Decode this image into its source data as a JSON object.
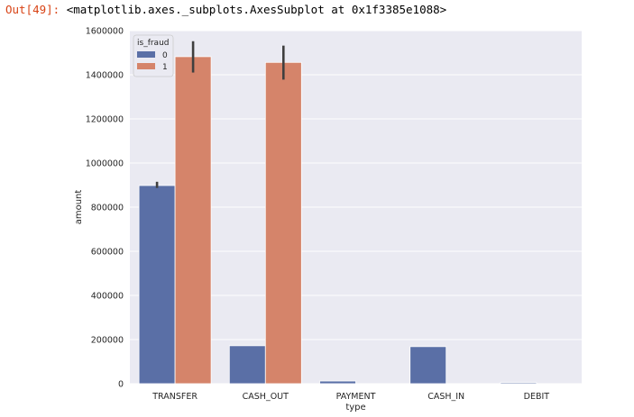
{
  "output": {
    "prompt": "Out[49]:",
    "text": "<matplotlib.axes._subplots.AxesSubplot at 0x1f3385e1088>"
  },
  "chart_data": {
    "type": "bar",
    "xlabel": "type",
    "ylabel": "amount",
    "ylim": [
      0,
      1600000
    ],
    "yticks": [
      0,
      200000,
      400000,
      600000,
      800000,
      1000000,
      1200000,
      1400000,
      1600000
    ],
    "categories": [
      "TRANSFER",
      "CASH_OUT",
      "PAYMENT",
      "CASH_IN",
      "DEBIT"
    ],
    "grid": true,
    "legend": {
      "title": "is_fraud",
      "placement": "top-left"
    },
    "series": [
      {
        "name": "0",
        "color": "#5a6fa6",
        "values": [
          898000,
          172000,
          12000,
          168000,
          5000
        ],
        "err_low": [
          887000,
          null,
          null,
          null,
          null
        ],
        "err_high": [
          915000,
          null,
          null,
          null,
          null
        ]
      },
      {
        "name": "1",
        "color": "#d5846a",
        "values": [
          1482000,
          1456000,
          0,
          0,
          0
        ],
        "err_low": [
          1410000,
          1378000,
          null,
          null,
          null
        ],
        "err_high": [
          1552000,
          1532000,
          null,
          null,
          null
        ]
      }
    ],
    "errorbar_color": "#3f3f3f"
  }
}
